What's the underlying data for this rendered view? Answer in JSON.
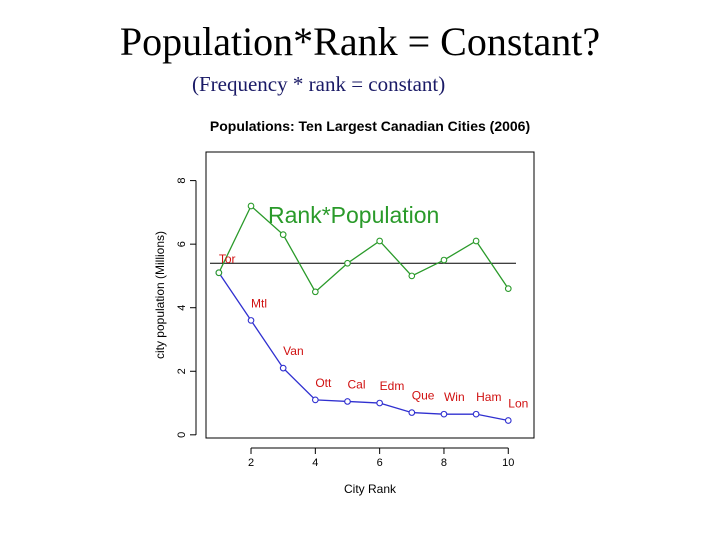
{
  "slide": {
    "title": "Population*Rank = Constant?",
    "subtitle": "(Frequency * rank = constant)"
  },
  "chart_data": {
    "type": "line",
    "title": "Populations: Ten Largest Canadian Cities (2006)",
    "xlabel": "City Rank",
    "ylabel": "city population (Millions)",
    "xlim": [
      0.6,
      10.8
    ],
    "ylim": [
      -0.1,
      8.9
    ],
    "xticks": [
      2,
      4,
      6,
      8,
      10
    ],
    "yticks": [
      0,
      2,
      4,
      6,
      8
    ],
    "grid": false,
    "reference_line_y": 5.4,
    "x": [
      1,
      2,
      3,
      4,
      5,
      6,
      7,
      8,
      9,
      10
    ],
    "series": [
      {
        "values": [
          5.1,
          3.6,
          2.1,
          1.1,
          1.05,
          1.0,
          0.7,
          0.65,
          0.65,
          0.45
        ],
        "color": "#3030d0"
      },
      {
        "values": [
          5.1,
          7.2,
          6.3,
          4.5,
          5.4,
          6.1,
          5.0,
          5.5,
          6.1,
          4.6
        ],
        "color": "#2a9a2a"
      }
    ],
    "point_labels": [
      "Tor",
      "Mtl",
      "Van",
      "Ott",
      "Cal",
      "Edm",
      "Que",
      "Win",
      "Ham",
      "Lon"
    ],
    "label_color": "#d01010",
    "annotation": "Rank*Population"
  }
}
